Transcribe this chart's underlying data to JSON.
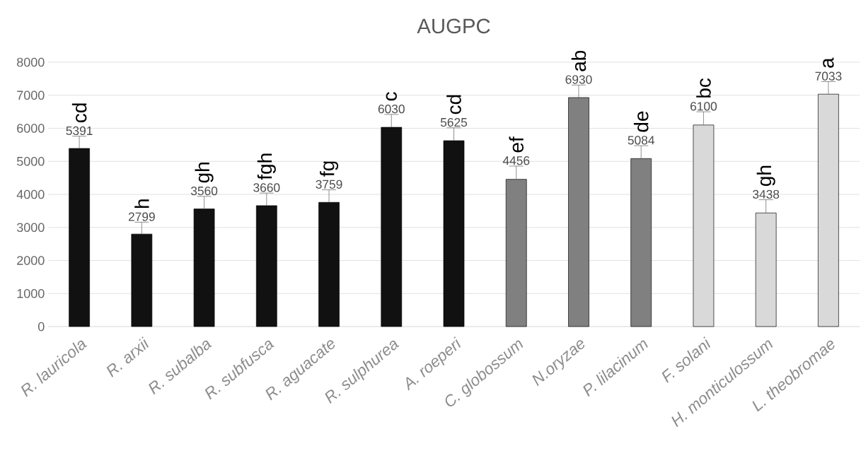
{
  "chart_data": {
    "type": "bar",
    "title": "AUGPC",
    "categories": [
      "R. lauricola",
      "R. arxii",
      "R. subalba",
      "R. subfusca",
      "R. aguacate",
      "R. sulphurea",
      "A. roeperi",
      "C. globossum",
      "N.oryzae",
      "P. lilacinum",
      "F. solani",
      "H. monticulossum",
      "L. theobromae"
    ],
    "values": [
      5391,
      2799,
      3560,
      3660,
      3759,
      6030,
      5625,
      4456,
      6930,
      5084,
      6100,
      3438,
      7033
    ],
    "errors": [
      370,
      360,
      380,
      380,
      380,
      390,
      390,
      400,
      380,
      390,
      400,
      400,
      380
    ],
    "colors": [
      "#111111",
      "#111111",
      "#111111",
      "#111111",
      "#111111",
      "#111111",
      "#111111",
      "#808080",
      "#808080",
      "#808080",
      "#d9d9d9",
      "#d9d9d9",
      "#d9d9d9"
    ],
    "data_labels": true,
    "ylim": [
      0,
      8000
    ],
    "yticks": [
      0,
      1000,
      2000,
      3000,
      4000,
      5000,
      6000,
      7000,
      8000
    ],
    "grid": "y",
    "annotations": [
      "cd",
      "h",
      "gh",
      "fgh",
      "fg",
      "c",
      "cd",
      "ef",
      "ab",
      "de",
      "bc",
      "gh",
      "a"
    ]
  }
}
